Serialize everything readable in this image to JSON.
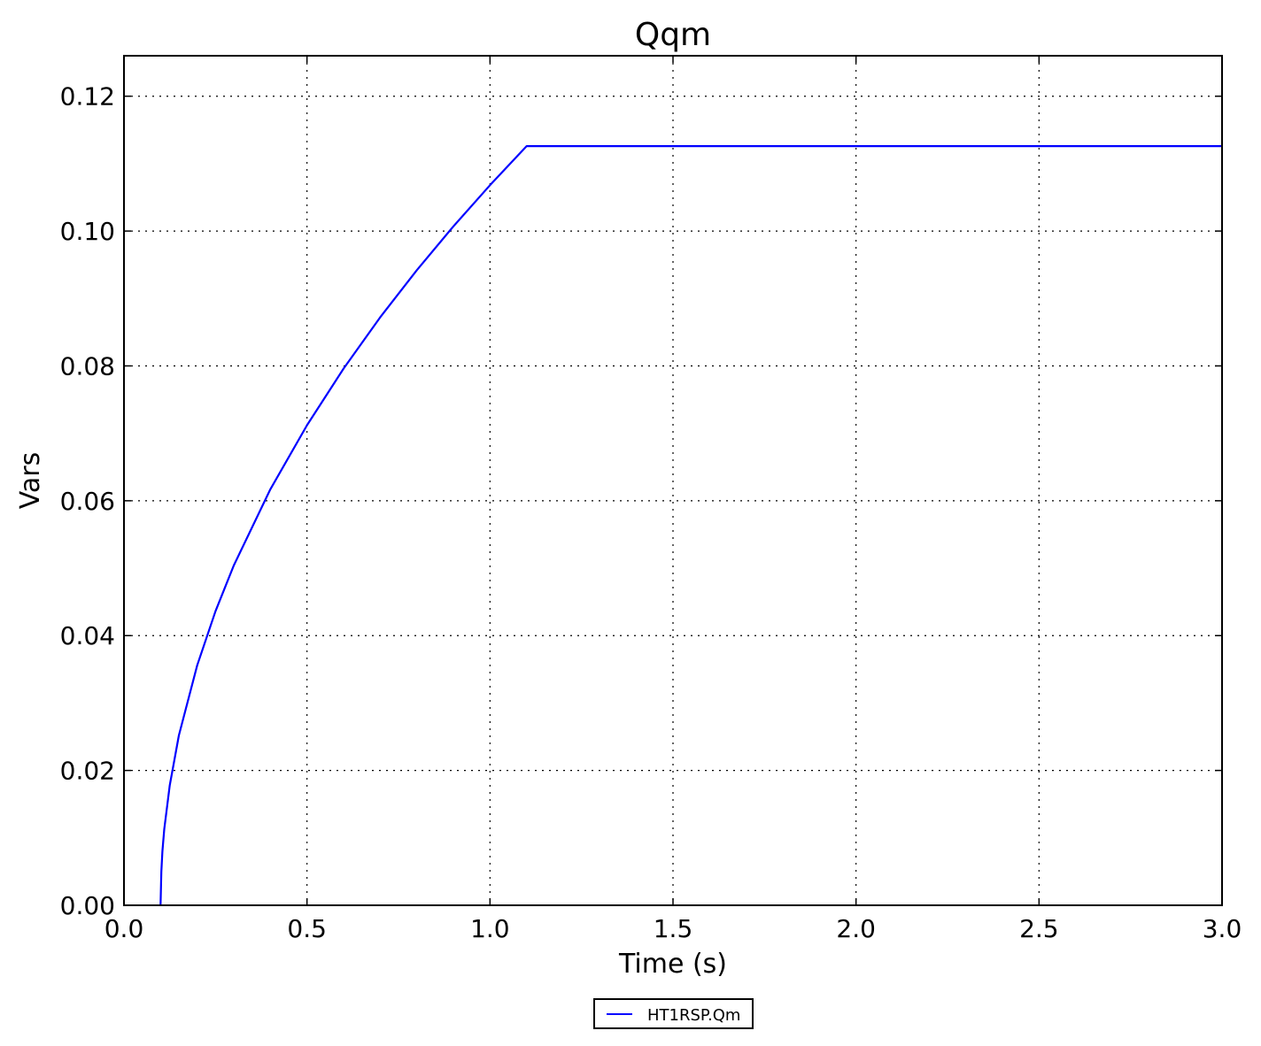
{
  "chart_data": {
    "type": "line",
    "title": "Qqm",
    "xlabel": "Time (s)",
    "ylabel": "Vars",
    "xlim": [
      0.0,
      3.0
    ],
    "ylim": [
      0.0,
      0.126
    ],
    "xticks": [
      "0.0",
      "0.5",
      "1.0",
      "1.5",
      "2.0",
      "2.5",
      "3.0"
    ],
    "yticks": [
      "0.00",
      "0.02",
      "0.04",
      "0.06",
      "0.08",
      "0.10",
      "0.12"
    ],
    "grid": true,
    "legend_placement": "bottom-center, below axes",
    "series": [
      {
        "name": "HT1RSP.Qm",
        "color": "#0000ff",
        "x": [
          0.1,
          0.102,
          0.105,
          0.11,
          0.125,
          0.15,
          0.2,
          0.25,
          0.3,
          0.4,
          0.5,
          0.6,
          0.7,
          0.8,
          0.9,
          1.0,
          1.1,
          3.0
        ],
        "y": [
          0.0,
          0.005,
          0.008,
          0.0113,
          0.0178,
          0.0252,
          0.0356,
          0.0436,
          0.0504,
          0.0617,
          0.0712,
          0.0796,
          0.0872,
          0.0942,
          0.1007,
          0.1068,
          0.1126,
          0.1126
        ]
      }
    ]
  }
}
